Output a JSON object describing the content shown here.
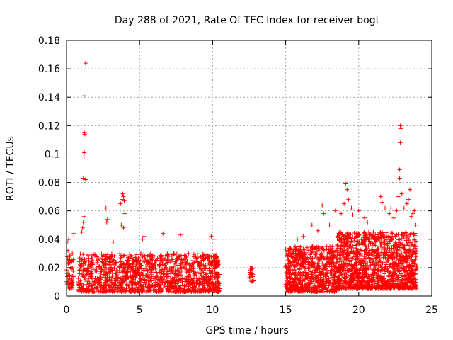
{
  "chart_data": {
    "type": "scatter",
    "title": "Day 288 of 2021, Rate Of TEC Index for receiver bogt",
    "xlabel": "GPS time / hours",
    "ylabel": "ROTI / TECUs",
    "xlim": [
      0,
      25
    ],
    "ylim": [
      0,
      0.18
    ],
    "xticks": [
      0,
      5,
      10,
      15,
      20,
      25
    ],
    "yticks": [
      0,
      0.02,
      0.04,
      0.06,
      0.08,
      0.1,
      0.12,
      0.14,
      0.16,
      0.18
    ],
    "grid": true,
    "marker": "plus",
    "color": "#ff0000",
    "segments": [
      {
        "x_start": 0.0,
        "x_end": 0.5,
        "y_min": 0.005,
        "y_max": 0.03,
        "count": 60
      },
      {
        "x_start": 0.8,
        "x_end": 4.0,
        "y_min": 0.003,
        "y_max": 0.03,
        "count": 420
      },
      {
        "x_start": 4.0,
        "x_end": 10.5,
        "y_min": 0.003,
        "y_max": 0.03,
        "count": 900
      },
      {
        "x_start": 12.5,
        "x_end": 12.8,
        "y_min": 0.01,
        "y_max": 0.02,
        "count": 20
      },
      {
        "x_start": 15.0,
        "x_end": 18.5,
        "y_min": 0.003,
        "y_max": 0.035,
        "count": 700
      },
      {
        "x_start": 18.5,
        "x_end": 24.0,
        "y_min": 0.005,
        "y_max": 0.045,
        "count": 1300
      }
    ],
    "notable_points": [
      {
        "x": 0.05,
        "y": 0.038
      },
      {
        "x": 0.1,
        "y": 0.032
      },
      {
        "x": 0.15,
        "y": 0.04
      },
      {
        "x": 0.5,
        "y": 0.044
      },
      {
        "x": 1.05,
        "y": 0.045
      },
      {
        "x": 1.1,
        "y": 0.048
      },
      {
        "x": 1.15,
        "y": 0.052
      },
      {
        "x": 1.2,
        "y": 0.056
      },
      {
        "x": 1.15,
        "y": 0.083
      },
      {
        "x": 1.2,
        "y": 0.098
      },
      {
        "x": 1.22,
        "y": 0.101
      },
      {
        "x": 1.25,
        "y": 0.114
      },
      {
        "x": 1.22,
        "y": 0.115
      },
      {
        "x": 1.2,
        "y": 0.141
      },
      {
        "x": 1.3,
        "y": 0.164
      },
      {
        "x": 1.3,
        "y": 0.082
      },
      {
        "x": 2.7,
        "y": 0.062
      },
      {
        "x": 2.75,
        "y": 0.052
      },
      {
        "x": 2.8,
        "y": 0.054
      },
      {
        "x": 3.2,
        "y": 0.038
      },
      {
        "x": 3.7,
        "y": 0.065
      },
      {
        "x": 3.8,
        "y": 0.068
      },
      {
        "x": 3.85,
        "y": 0.072
      },
      {
        "x": 3.9,
        "y": 0.07
      },
      {
        "x": 3.95,
        "y": 0.067
      },
      {
        "x": 4.0,
        "y": 0.058
      },
      {
        "x": 3.75,
        "y": 0.05
      },
      {
        "x": 3.9,
        "y": 0.048
      },
      {
        "x": 5.2,
        "y": 0.04
      },
      {
        "x": 5.3,
        "y": 0.042
      },
      {
        "x": 6.6,
        "y": 0.044
      },
      {
        "x": 7.8,
        "y": 0.043
      },
      {
        "x": 9.9,
        "y": 0.042
      },
      {
        "x": 10.1,
        "y": 0.04
      },
      {
        "x": 15.0,
        "y": 0.033
      },
      {
        "x": 16.8,
        "y": 0.05
      },
      {
        "x": 17.2,
        "y": 0.046
      },
      {
        "x": 17.5,
        "y": 0.064
      },
      {
        "x": 17.6,
        "y": 0.058
      },
      {
        "x": 18.0,
        "y": 0.05
      },
      {
        "x": 18.4,
        "y": 0.06
      },
      {
        "x": 18.8,
        "y": 0.058
      },
      {
        "x": 19.0,
        "y": 0.065
      },
      {
        "x": 19.1,
        "y": 0.079
      },
      {
        "x": 19.2,
        "y": 0.075
      },
      {
        "x": 19.3,
        "y": 0.068
      },
      {
        "x": 19.5,
        "y": 0.062
      },
      {
        "x": 19.6,
        "y": 0.057
      },
      {
        "x": 20.0,
        "y": 0.06
      },
      {
        "x": 20.4,
        "y": 0.055
      },
      {
        "x": 20.6,
        "y": 0.052
      },
      {
        "x": 21.0,
        "y": 0.045
      },
      {
        "x": 21.5,
        "y": 0.07
      },
      {
        "x": 21.6,
        "y": 0.066
      },
      {
        "x": 21.8,
        "y": 0.062
      },
      {
        "x": 22.1,
        "y": 0.058
      },
      {
        "x": 22.2,
        "y": 0.062
      },
      {
        "x": 22.4,
        "y": 0.055
      },
      {
        "x": 22.6,
        "y": 0.06
      },
      {
        "x": 22.7,
        "y": 0.07
      },
      {
        "x": 22.8,
        "y": 0.083
      },
      {
        "x": 22.8,
        "y": 0.089
      },
      {
        "x": 22.85,
        "y": 0.108
      },
      {
        "x": 22.85,
        "y": 0.12
      },
      {
        "x": 22.9,
        "y": 0.118
      },
      {
        "x": 22.95,
        "y": 0.072
      },
      {
        "x": 23.1,
        "y": 0.062
      },
      {
        "x": 23.3,
        "y": 0.065
      },
      {
        "x": 23.4,
        "y": 0.068
      },
      {
        "x": 23.5,
        "y": 0.075
      },
      {
        "x": 23.6,
        "y": 0.056
      },
      {
        "x": 23.7,
        "y": 0.058
      },
      {
        "x": 23.8,
        "y": 0.06
      },
      {
        "x": 23.9,
        "y": 0.05
      },
      {
        "x": 15.8,
        "y": 0.04
      },
      {
        "x": 16.2,
        "y": 0.042
      }
    ]
  }
}
